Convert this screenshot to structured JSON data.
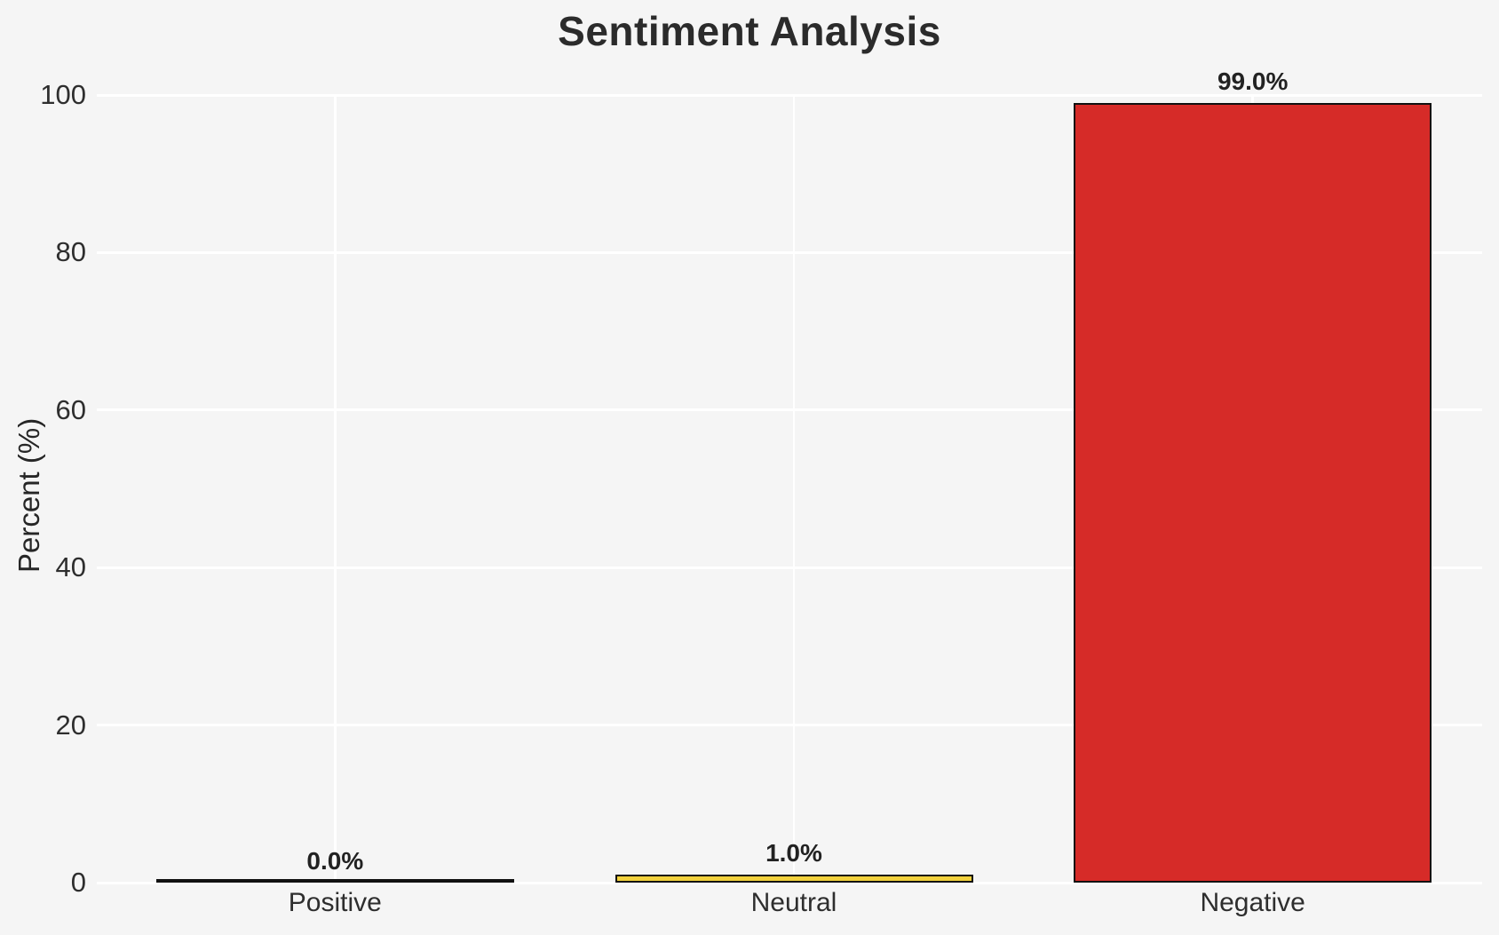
{
  "chart_data": {
    "type": "bar",
    "title": "Sentiment Analysis",
    "xlabel": "",
    "ylabel": "Percent (%)",
    "categories": [
      "Positive",
      "Neutral",
      "Negative"
    ],
    "values": [
      0.0,
      1.0,
      99.0
    ],
    "value_labels": [
      "0.0%",
      "1.0%",
      "99.0%"
    ],
    "bar_fill_colors": [
      "none",
      "#f2d13c",
      "#d62b28"
    ],
    "bar_edge_color": "#111111",
    "ylim": [
      0,
      100
    ],
    "yticks": [
      "0",
      "20",
      "40",
      "60",
      "80",
      "100"
    ],
    "grid": true,
    "legend": "none",
    "colors": {
      "background": "#f5f5f5",
      "grid": "#ffffff",
      "text": "#262626",
      "title": "#2b2b2b"
    }
  }
}
